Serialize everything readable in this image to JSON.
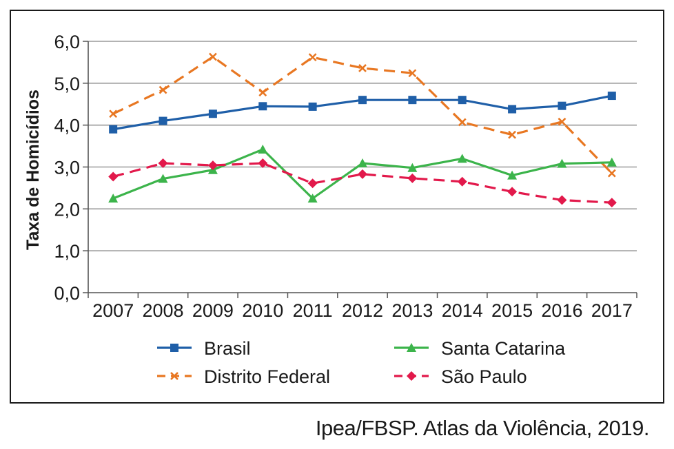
{
  "chart_data": {
    "type": "line",
    "title": "",
    "xlabel": "",
    "ylabel": "Taxa de Homicídios",
    "categories": [
      "2007",
      "2008",
      "2009",
      "2010",
      "2011",
      "2012",
      "2013",
      "2014",
      "2015",
      "2016",
      "2017"
    ],
    "ylim": [
      0,
      6
    ],
    "yticks": [
      "0,0",
      "1,0",
      "2,0",
      "3,0",
      "4,0",
      "5,0",
      "6,0"
    ],
    "ytick_values": [
      0,
      1,
      2,
      3,
      4,
      5,
      6
    ],
    "grid": true,
    "legend_position": "bottom",
    "series": [
      {
        "name": "Brasil",
        "color": "#1f5fa8",
        "dash": "solid",
        "marker": "square",
        "values": [
          3.9,
          4.1,
          4.27,
          4.45,
          4.44,
          4.6,
          4.6,
          4.6,
          4.38,
          4.46,
          4.7
        ]
      },
      {
        "name": "Distrito Federal",
        "color": "#e87722",
        "dash": "dashed",
        "marker": "x",
        "values": [
          4.27,
          4.84,
          5.63,
          4.78,
          5.62,
          5.36,
          5.24,
          4.07,
          3.77,
          4.08,
          2.85
        ]
      },
      {
        "name": "Santa Catarina",
        "color": "#3cb44b",
        "dash": "solid",
        "marker": "triangle",
        "values": [
          2.25,
          2.72,
          2.93,
          3.42,
          2.25,
          3.09,
          2.98,
          3.2,
          2.8,
          3.08,
          3.11
        ]
      },
      {
        "name": "São Paulo",
        "color": "#e2194b",
        "dash": "dashed",
        "marker": "diamond",
        "values": [
          2.77,
          3.09,
          3.04,
          3.09,
          2.61,
          2.83,
          2.73,
          2.65,
          2.41,
          2.21,
          2.15
        ]
      }
    ]
  },
  "source": "Ipea/FBSP. Atlas da Violência, 2019."
}
